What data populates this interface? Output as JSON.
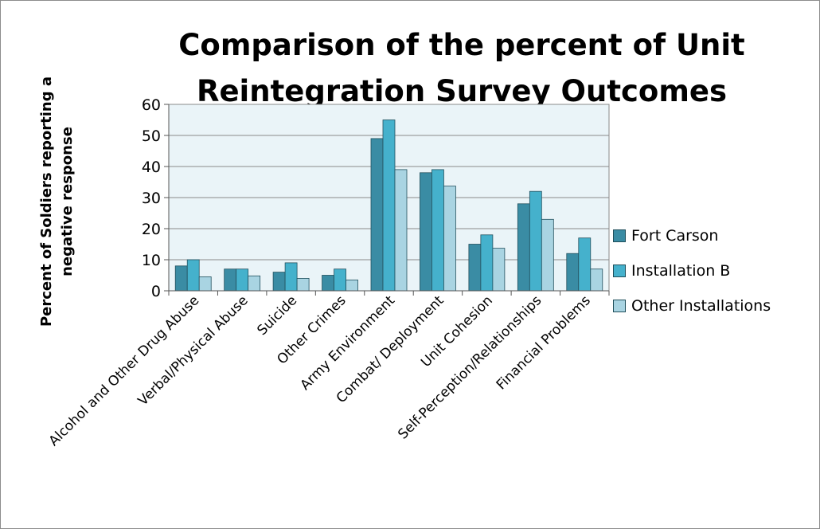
{
  "chart_data": {
    "type": "bar",
    "title": [
      "Comparison of the percent of Unit",
      "Reintegration Survey Outcomes"
    ],
    "xlabel": "",
    "ylabel": [
      "Percent of Soldiers reporting a",
      "negative response"
    ],
    "ylim": [
      0,
      60
    ],
    "yticks": [
      0,
      10,
      20,
      30,
      40,
      50,
      60
    ],
    "grid": true,
    "legend_position": "right",
    "categories": [
      "Alcohol and Other Drug Abuse",
      "Verbal/Physical Abuse",
      "Suicide",
      "Other Crimes",
      "Army Environment",
      "Combat/ Deployment",
      "Unit Cohesion",
      "Self-Perception/Relationships",
      "Financial Problems"
    ],
    "series": [
      {
        "name": "Fort Carson",
        "color": "#3a8ca4",
        "values": [
          8,
          7,
          6,
          5,
          49,
          38,
          15,
          28,
          12
        ]
      },
      {
        "name": "Installation B",
        "color": "#45b1cc",
        "values": [
          10,
          7,
          9,
          7,
          55,
          39,
          18,
          32,
          17
        ]
      },
      {
        "name": "Other Installations",
        "color": "#a9d4e2",
        "values": [
          4.5,
          4.8,
          4,
          3.5,
          39,
          33.7,
          13.7,
          23,
          7
        ]
      }
    ]
  }
}
